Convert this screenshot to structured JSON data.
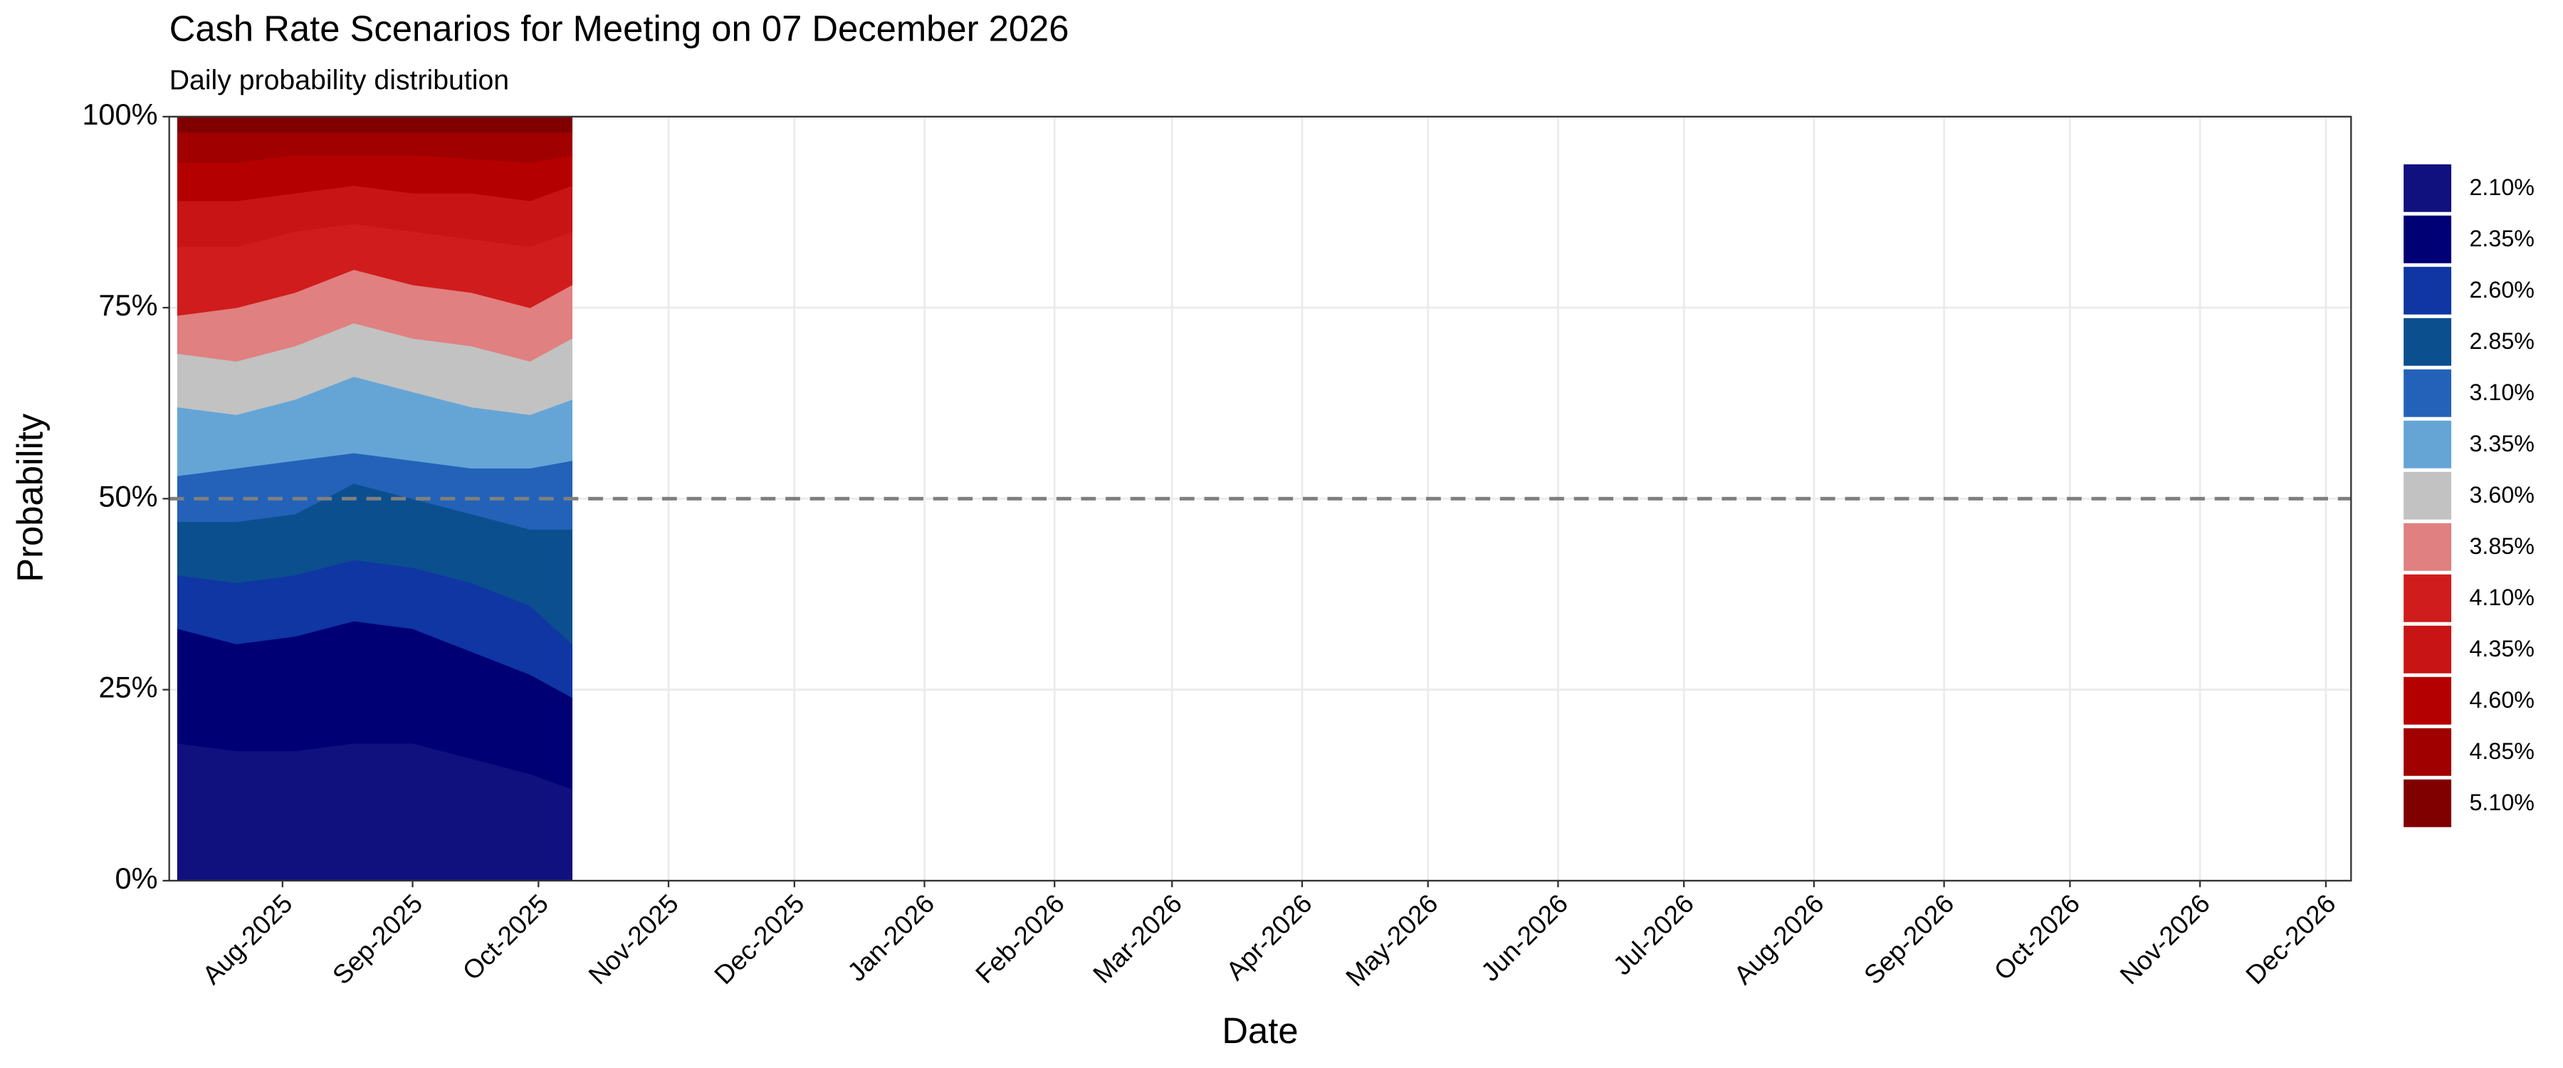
{
  "chart_data": {
    "type": "stacked_area",
    "title": "Cash Rate Scenarios for Meeting on 07 December 2026",
    "subtitle": "Daily probability distribution",
    "x_label": "Date",
    "y_label": "Probability",
    "x": [
      "2025-07-07",
      "2025-07-21",
      "2025-08-04",
      "2025-08-18",
      "2025-09-01",
      "2025-09-15",
      "2025-09-29",
      "2025-10-09"
    ],
    "series": [
      {
        "name": "2.10%",
        "color": "#10107f",
        "values": [
          18,
          17,
          17,
          18,
          18,
          16,
          14,
          12
        ]
      },
      {
        "name": "2.35%",
        "color": "#000075",
        "values": [
          15,
          14,
          15,
          16,
          15,
          14,
          13,
          12
        ]
      },
      {
        "name": "2.60%",
        "color": "#0f36a3",
        "values": [
          7,
          8,
          8,
          8,
          8,
          9,
          9,
          7
        ]
      },
      {
        "name": "2.85%",
        "color": "#0b4f8f",
        "values": [
          7,
          8,
          8,
          10,
          9,
          9,
          10,
          15
        ]
      },
      {
        "name": "3.10%",
        "color": "#2362b8",
        "values": [
          6,
          7,
          7,
          4,
          5,
          6,
          8,
          9
        ]
      },
      {
        "name": "3.35%",
        "color": "#65a5d6",
        "values": [
          9,
          7,
          8,
          10,
          9,
          8,
          7,
          8
        ]
      },
      {
        "name": "3.60%",
        "color": "#c2c2c2",
        "values": [
          7,
          7,
          7,
          7,
          7,
          8,
          7,
          8
        ]
      },
      {
        "name": "3.85%",
        "color": "#e08080",
        "values": [
          5,
          7,
          7,
          7,
          7,
          7,
          7,
          7
        ]
      },
      {
        "name": "4.10%",
        "color": "#d01c1c",
        "values": [
          9,
          8,
          8,
          6,
          7,
          7,
          8,
          7
        ]
      },
      {
        "name": "4.35%",
        "color": "#c81414",
        "values": [
          6,
          6,
          5,
          5,
          5,
          6,
          6,
          6
        ]
      },
      {
        "name": "4.60%",
        "color": "#b50000",
        "values": [
          5,
          5,
          5,
          4,
          5,
          4.5,
          5,
          4
        ]
      },
      {
        "name": "4.85%",
        "color": "#a00000",
        "values": [
          4,
          4,
          3,
          3,
          3,
          3.5,
          4,
          3
        ]
      },
      {
        "name": "5.10%",
        "color": "#800000",
        "values": [
          2,
          2,
          2,
          2,
          2,
          2,
          2,
          2
        ]
      }
    ],
    "xlim": [
      "2025-07-05",
      "2026-12-07"
    ],
    "xticks": [
      {
        "value": "2025-08-01",
        "label": "Aug-2025"
      },
      {
        "value": "2025-09-01",
        "label": "Sep-2025"
      },
      {
        "value": "2025-10-01",
        "label": "Oct-2025"
      },
      {
        "value": "2025-11-01",
        "label": "Nov-2025"
      },
      {
        "value": "2025-12-01",
        "label": "Dec-2025"
      },
      {
        "value": "2026-01-01",
        "label": "Jan-2026"
      },
      {
        "value": "2026-02-01",
        "label": "Feb-2026"
      },
      {
        "value": "2026-03-01",
        "label": "Mar-2026"
      },
      {
        "value": "2026-04-01",
        "label": "Apr-2026"
      },
      {
        "value": "2026-05-01",
        "label": "May-2026"
      },
      {
        "value": "2026-06-01",
        "label": "Jun-2026"
      },
      {
        "value": "2026-07-01",
        "label": "Jul-2026"
      },
      {
        "value": "2026-08-01",
        "label": "Aug-2026"
      },
      {
        "value": "2026-09-01",
        "label": "Sep-2026"
      },
      {
        "value": "2026-10-01",
        "label": "Oct-2026"
      },
      {
        "value": "2026-11-01",
        "label": "Nov-2026"
      },
      {
        "value": "2026-12-01",
        "label": "Dec-2026"
      }
    ],
    "ylim": [
      0,
      100
    ],
    "yticks": [
      {
        "value": 0,
        "label": "0%"
      },
      {
        "value": 25,
        "label": "25%"
      },
      {
        "value": 50,
        "label": "50%"
      },
      {
        "value": 75,
        "label": "75%"
      },
      {
        "value": 100,
        "label": "100%"
      }
    ],
    "reference_line": 50,
    "grid": true,
    "legend": "right"
  }
}
